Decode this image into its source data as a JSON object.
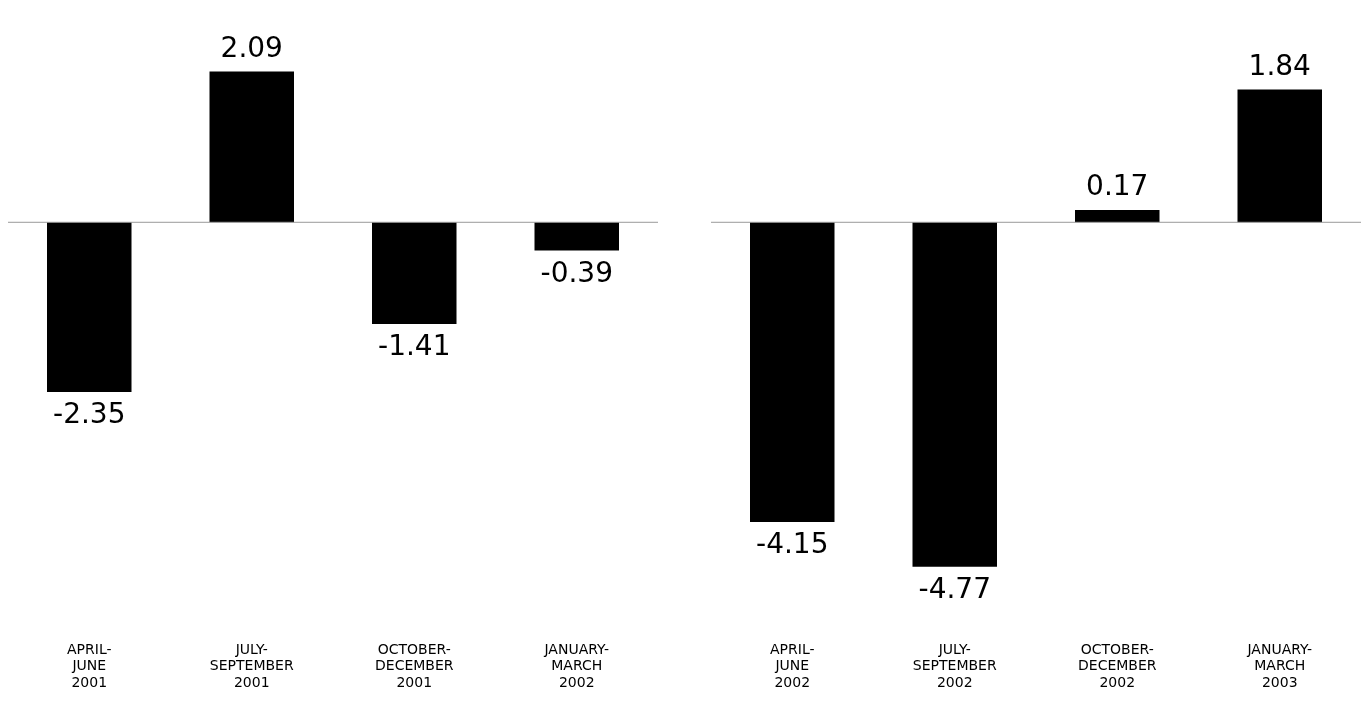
{
  "chart_data": [
    {
      "type": "bar",
      "categories": [
        "APRIL-\nJUNE\n2001",
        "JULY-\nSEPTEMBER\n2001",
        "OCTOBER-\nDECEMBER\n2001",
        "JANUARY-\nMARCH\n2002"
      ],
      "values": [
        -2.35,
        2.09,
        -1.41,
        -0.39
      ],
      "color": "#000000",
      "data_labels": true,
      "tick_labels": "x",
      "grid": false
    },
    {
      "type": "bar",
      "categories": [
        "APRIL-\nJUNE\n2002",
        "JULY-\nSEPTEMBER\n2002",
        "OCTOBER-\nDECEMBER\n2002",
        "JANUARY-\nMARCH\n2003"
      ],
      "values": [
        -4.15,
        -4.77,
        0.17,
        1.84
      ],
      "color": "#000000",
      "data_labels": true,
      "tick_labels": "x",
      "grid": false
    }
  ]
}
